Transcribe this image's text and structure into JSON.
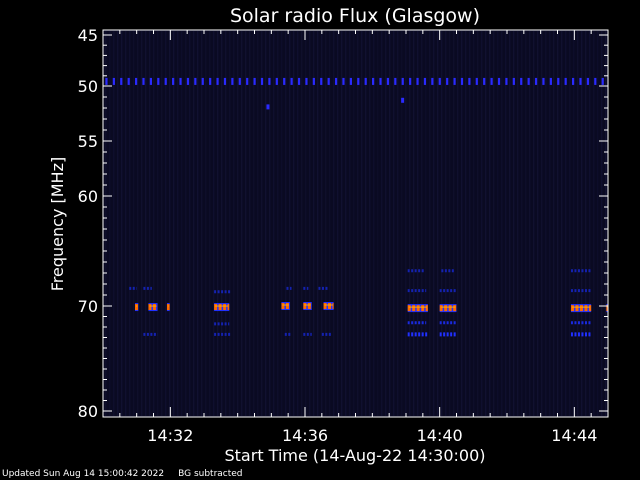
{
  "chart_data": {
    "type": "heatmap",
    "title": "Solar radio Flux (Glasgow)",
    "xlabel": "Start Time (14-Aug-22 14:30:00)",
    "ylabel": "Frequency [MHz]",
    "x_unit": "minutes after 14:30:00",
    "xlim": [
      0,
      15
    ],
    "ylim": [
      45,
      80
    ],
    "y_axis_reversed": true,
    "y_axis_scale": "nonlinear (frequency decreases upward, 80 MHz at bottom)",
    "x_ticks": [
      {
        "value": 2,
        "label": "14:32"
      },
      {
        "value": 6,
        "label": "14:36"
      },
      {
        "value": 10,
        "label": "14:40"
      },
      {
        "value": 14,
        "label": "14:44"
      }
    ],
    "y_ticks": [
      {
        "value": 45,
        "label": "45"
      },
      {
        "value": 50,
        "label": "50"
      },
      {
        "value": 55,
        "label": "55"
      },
      {
        "value": 60,
        "label": "60"
      },
      {
        "value": 70,
        "label": "70"
      },
      {
        "value": 80,
        "label": "80"
      }
    ],
    "colormap": [
      "#0a0a25",
      "#1020c8",
      "#2a2aff",
      "#ff5a00",
      "#ffa000"
    ],
    "features": [
      {
        "kind": "periodic-interference",
        "freq_mhz": 49.6,
        "x_start": 0.0,
        "x_end": 15.0,
        "period_min": 0.22,
        "intensity": 0.45
      },
      {
        "kind": "spot",
        "freq_mhz": 51.9,
        "x": 4.9,
        "intensity": 0.5
      },
      {
        "kind": "spot",
        "freq_mhz": 51.3,
        "x": 8.9,
        "intensity": 0.5
      },
      {
        "kind": "dash-group",
        "freq_mhz": 68.4,
        "segments": [
          [
            0.78,
            1.0
          ],
          [
            1.2,
            1.45
          ]
        ],
        "intensity": 0.4
      },
      {
        "kind": "dash-group",
        "freq_mhz": 70.1,
        "segments": [
          [
            0.95,
            1.05
          ],
          [
            1.35,
            1.62
          ],
          [
            1.9,
            1.98
          ]
        ],
        "intensity": 1.0
      },
      {
        "kind": "dash-group",
        "freq_mhz": 72.7,
        "segments": [
          [
            1.2,
            1.62
          ]
        ],
        "intensity": 0.35
      },
      {
        "kind": "dash-group",
        "freq_mhz": 68.7,
        "segments": [
          [
            3.3,
            3.8
          ]
        ],
        "intensity": 0.4
      },
      {
        "kind": "dash-group",
        "freq_mhz": 70.1,
        "segments": [
          [
            3.3,
            3.75
          ]
        ],
        "intensity": 1.0
      },
      {
        "kind": "dash-group",
        "freq_mhz": 71.7,
        "segments": [
          [
            3.3,
            3.75
          ]
        ],
        "intensity": 0.35
      },
      {
        "kind": "dash-group",
        "freq_mhz": 72.7,
        "segments": [
          [
            3.3,
            3.8
          ]
        ],
        "intensity": 0.4
      },
      {
        "kind": "dash-group",
        "freq_mhz": 68.4,
        "segments": [
          [
            5.45,
            5.6
          ],
          [
            5.95,
            6.1
          ],
          [
            6.4,
            6.7
          ]
        ],
        "intensity": 0.4
      },
      {
        "kind": "dash-group",
        "freq_mhz": 70.0,
        "segments": [
          [
            5.3,
            5.55
          ],
          [
            5.95,
            6.2
          ],
          [
            6.55,
            6.85
          ]
        ],
        "intensity": 1.0
      },
      {
        "kind": "dash-group",
        "freq_mhz": 72.7,
        "segments": [
          [
            5.4,
            5.6
          ],
          [
            5.95,
            6.2
          ],
          [
            6.5,
            6.8
          ]
        ],
        "intensity": 0.35
      },
      {
        "kind": "dash-group",
        "freq_mhz": 66.8,
        "segments": [
          [
            9.05,
            9.55
          ],
          [
            10.05,
            10.45
          ]
        ],
        "intensity": 0.5
      },
      {
        "kind": "dash-group",
        "freq_mhz": 68.6,
        "segments": [
          [
            9.05,
            9.6
          ],
          [
            10.0,
            10.5
          ]
        ],
        "intensity": 0.5
      },
      {
        "kind": "dash-group",
        "freq_mhz": 70.2,
        "segments": [
          [
            9.05,
            9.65
          ],
          [
            10.0,
            10.5
          ]
        ],
        "intensity": 1.0
      },
      {
        "kind": "dash-group",
        "freq_mhz": 71.6,
        "segments": [
          [
            9.05,
            9.6
          ],
          [
            10.0,
            10.5
          ]
        ],
        "intensity": 0.7
      },
      {
        "kind": "dash-group",
        "freq_mhz": 72.7,
        "segments": [
          [
            9.05,
            9.65
          ],
          [
            10.0,
            10.5
          ]
        ],
        "intensity": 0.8
      },
      {
        "kind": "dash-group",
        "freq_mhz": 66.8,
        "segments": [
          [
            13.9,
            14.5
          ]
        ],
        "intensity": 0.5
      },
      {
        "kind": "dash-group",
        "freq_mhz": 68.6,
        "segments": [
          [
            13.9,
            14.5
          ]
        ],
        "intensity": 0.45
      },
      {
        "kind": "dash-group",
        "freq_mhz": 70.2,
        "segments": [
          [
            13.9,
            14.5
          ],
          [
            14.95,
            15.0
          ]
        ],
        "intensity": 1.0
      },
      {
        "kind": "dash-group",
        "freq_mhz": 71.6,
        "segments": [
          [
            13.9,
            14.5
          ]
        ],
        "intensity": 0.7
      },
      {
        "kind": "dash-group",
        "freq_mhz": 72.7,
        "segments": [
          [
            13.9,
            14.5
          ]
        ],
        "intensity": 0.8
      }
    ]
  },
  "footer": {
    "updated": "Updated Sun Aug 14 15:00:42 2022",
    "note": "BG subtracted"
  }
}
